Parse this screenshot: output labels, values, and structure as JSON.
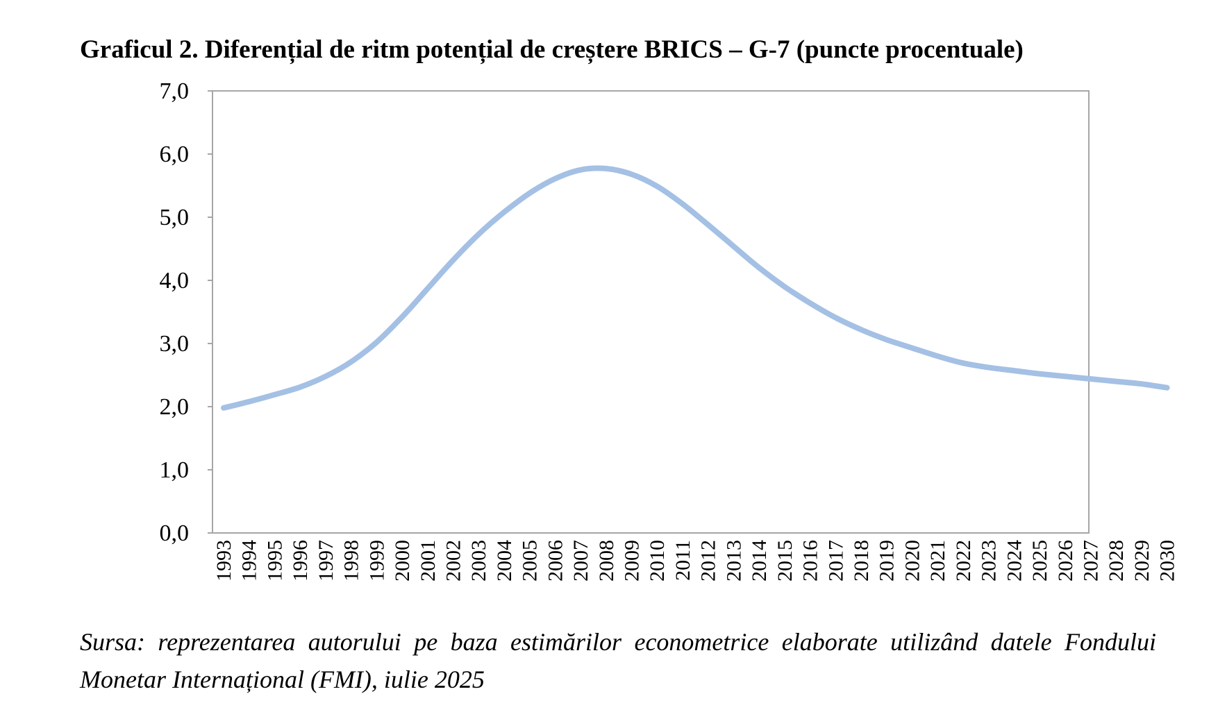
{
  "title": "Graficul 2. Diferențial de ritm potențial de creștere BRICS – G-7 (puncte procentuale)",
  "source": "Sursa: reprezentarea autorului pe baza estimărilor econometrice elaborate utilizând datele Fondului Monetar Internațional (FMI), iulie 2025",
  "colors": {
    "line": "#a4c0e4",
    "axis": "#a6a6a6",
    "text": "#000000"
  },
  "chart_data": {
    "type": "line",
    "title": "Graficul 2. Diferențial de ritm potențial de creștere BRICS – G-7 (puncte procentuale)",
    "xlabel": "",
    "ylabel": "",
    "ylim": [
      0,
      7
    ],
    "grid": false,
    "legend": "none",
    "y_ticks": [
      "0,0",
      "1,0",
      "2,0",
      "3,0",
      "4,0",
      "5,0",
      "6,0",
      "7,0"
    ],
    "categories": [
      "1993",
      "1994",
      "1995",
      "1996",
      "1997",
      "1998",
      "1999",
      "2000",
      "2001",
      "2002",
      "2003",
      "2004",
      "2005",
      "2006",
      "2007",
      "2008",
      "2009",
      "2010",
      "2011",
      "2012",
      "2013",
      "2014",
      "2015",
      "2016",
      "2017",
      "2018",
      "2019",
      "2020",
      "2021",
      "2022",
      "2023",
      "2024",
      "2025",
      "2026",
      "2027",
      "2028",
      "2029",
      "2030"
    ],
    "series": [
      {
        "values": [
          1.98,
          2.08,
          2.19,
          2.31,
          2.48,
          2.71,
          3.02,
          3.42,
          3.87,
          4.32,
          4.73,
          5.08,
          5.38,
          5.61,
          5.75,
          5.77,
          5.68,
          5.49,
          5.21,
          4.88,
          4.54,
          4.2,
          3.9,
          3.64,
          3.41,
          3.22,
          3.06,
          2.93,
          2.8,
          2.69,
          2.62,
          2.57,
          2.52,
          2.48,
          2.44,
          2.4,
          2.36,
          2.3
        ]
      }
    ]
  }
}
